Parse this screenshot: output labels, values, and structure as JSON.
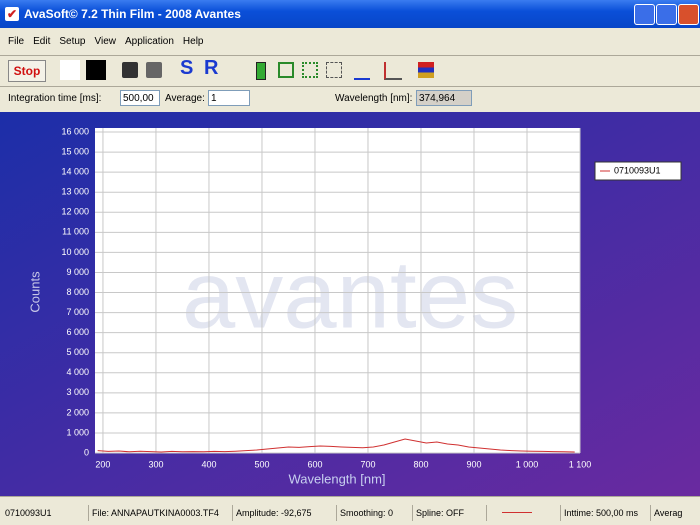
{
  "window": {
    "title": "AvaSoft© 7.2 Thin Film - 2008 Avantes"
  },
  "menu": [
    "File",
    "Edit",
    "Setup",
    "View",
    "Application",
    "Help"
  ],
  "toolbar": {
    "stop": "Stop",
    "s": "S",
    "r": "R"
  },
  "fields": {
    "integration_label": "Integration time [ms]:",
    "integration_value": "500,00",
    "average_label": "Average:",
    "average_value": "1",
    "wavelength_label": "Wavelength [nm]:",
    "wavelength_value": "374,964"
  },
  "chart_data": {
    "type": "line",
    "watermark": "avantes",
    "ylabel": "Counts",
    "xlabel": "Wavelength [nm]",
    "x": [
      190,
      210,
      230,
      250,
      270,
      290,
      310,
      330,
      350,
      370,
      390,
      410,
      430,
      450,
      470,
      490,
      510,
      530,
      550,
      570,
      590,
      610,
      630,
      650,
      670,
      690,
      710,
      730,
      750,
      770,
      790,
      810,
      830,
      850,
      870,
      890,
      910,
      930,
      950,
      970,
      990,
      1010,
      1030,
      1050,
      1070,
      1090
    ],
    "series": [
      {
        "name": "0710093U1",
        "color": "#d03030",
        "values": [
          120,
          80,
          100,
          60,
          90,
          70,
          50,
          80,
          60,
          70,
          60,
          80,
          70,
          90,
          120,
          150,
          200,
          250,
          300,
          280,
          320,
          350,
          330,
          300,
          280,
          260,
          300,
          400,
          550,
          700,
          600,
          500,
          550,
          450,
          400,
          300,
          250,
          200,
          150,
          120,
          100,
          90,
          80,
          70,
          60,
          50
        ]
      }
    ],
    "xlim": [
      185,
      1100
    ],
    "ylim": [
      0,
      16200
    ],
    "xticks": [
      200,
      300,
      400,
      500,
      600,
      700,
      800,
      900,
      {
        "value": 1000,
        "label": "1 000"
      },
      {
        "value": 1100,
        "label": "1 100"
      }
    ],
    "yticks": [
      0,
      {
        "value": 1000,
        "label": "1 000"
      },
      {
        "value": 2000,
        "label": "2 000"
      },
      {
        "value": 3000,
        "label": "3 000"
      },
      {
        "value": 4000,
        "label": "4 000"
      },
      {
        "value": 5000,
        "label": "5 000"
      },
      {
        "value": 6000,
        "label": "6 000"
      },
      {
        "value": 7000,
        "label": "7 000"
      },
      {
        "value": 8000,
        "label": "8 000"
      },
      {
        "value": 9000,
        "label": "9 000"
      },
      {
        "value": 10000,
        "label": "10 000"
      },
      {
        "value": 11000,
        "label": "11 000"
      },
      {
        "value": 12000,
        "label": "12 000"
      },
      {
        "value": 13000,
        "label": "13 000"
      },
      {
        "value": 14000,
        "label": "14 000"
      },
      {
        "value": 15000,
        "label": "15 000"
      },
      {
        "value": 16000,
        "label": "16 000"
      }
    ],
    "grid": true
  },
  "status_bar": [
    "0710093U1",
    "File: ANNAPAUTKINA0003.TF4",
    "Amplitude: -92,675",
    "Smoothing: 0",
    "Spline: OFF",
    "Inttime: 500,00 ms",
    "Averag"
  ]
}
